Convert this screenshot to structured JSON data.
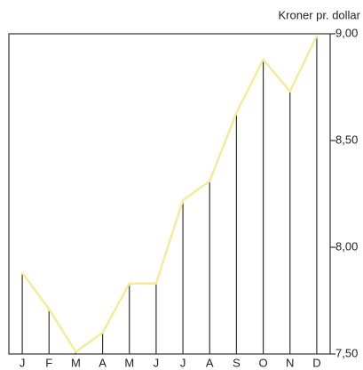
{
  "chart_data": {
    "type": "line",
    "title": "Kroner pr. dollar",
    "categories": [
      "J",
      "F",
      "M",
      "A",
      "M",
      "J",
      "J",
      "A",
      "S",
      "O",
      "N",
      "D"
    ],
    "values": [
      7.88,
      7.71,
      7.51,
      7.6,
      7.83,
      7.83,
      8.22,
      8.31,
      8.63,
      8.88,
      8.73,
      8.99
    ],
    "color": "#f3ed9a",
    "ylim": [
      7.5,
      9.0
    ],
    "yticks": [
      {
        "value": 7.5,
        "label": "7,50"
      },
      {
        "value": 8.0,
        "label": "8,00"
      },
      {
        "value": 8.5,
        "label": "8,50"
      },
      {
        "value": 9.0,
        "label": "9,00"
      }
    ],
    "grid": false
  }
}
